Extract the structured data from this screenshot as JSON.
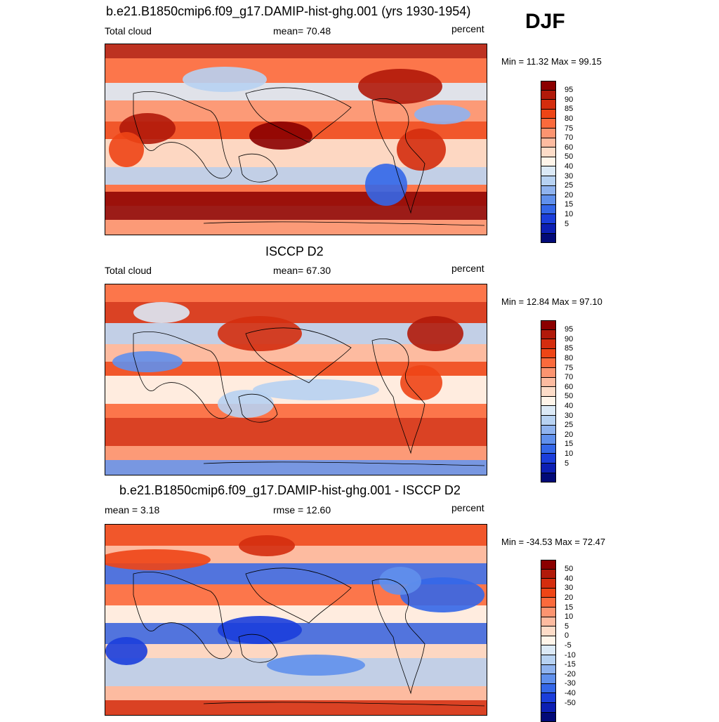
{
  "season": "DJF",
  "panels": [
    {
      "title": "b.e21.B1850cmip6.f09_g17.DAMIP-hist-ghg.001 (yrs 1930-1954)",
      "left_label": "Total cloud",
      "center_label": "mean=  70.48",
      "right_label": "percent",
      "minmax": "Min =  11.32 Max =  99.15",
      "colorbar_labels": [
        "95",
        "90",
        "85",
        "80",
        "75",
        "70",
        "60",
        "50",
        "40",
        "30",
        "25",
        "20",
        "15",
        "10",
        "5"
      ],
      "colors": [
        "#8b0000",
        "#b11a0a",
        "#d42d0e",
        "#ee4516",
        "#fb6a3c",
        "#fc9470",
        "#fdbba0",
        "#fddcc8",
        "#fff5ea",
        "#dbe9f6",
        "#b7d2f2",
        "#8fb3ef",
        "#6090ec",
        "#3467e8",
        "#1b3edb",
        "#0c1fb3",
        "#020a78"
      ]
    },
    {
      "title": "ISCCP D2",
      "left_label": "Total cloud",
      "center_label": "mean=  67.30",
      "right_label": "percent",
      "minmax": "Min =  12.84 Max =  97.10",
      "colorbar_labels": [
        "95",
        "90",
        "85",
        "80",
        "75",
        "70",
        "60",
        "50",
        "40",
        "30",
        "25",
        "20",
        "15",
        "10",
        "5"
      ],
      "colors": [
        "#8b0000",
        "#b11a0a",
        "#d42d0e",
        "#ee4516",
        "#fb6a3c",
        "#fc9470",
        "#fdbba0",
        "#fddcc8",
        "#fff5ea",
        "#dbe9f6",
        "#b7d2f2",
        "#8fb3ef",
        "#6090ec",
        "#3467e8",
        "#1b3edb",
        "#0c1fb3",
        "#020a78"
      ]
    },
    {
      "title": "b.e21.B1850cmip6.f09_g17.DAMIP-hist-ghg.001 - ISCCP D2",
      "left_label": "mean =   3.18",
      "center_label": "rmse =  12.60",
      "right_label": "percent",
      "minmax": "Min = -34.53 Max =  72.47",
      "colorbar_labels": [
        "50",
        "40",
        "30",
        "20",
        "15",
        "10",
        "5",
        "0",
        "-5",
        "-10",
        "-15",
        "-20",
        "-30",
        "-40",
        "-50"
      ],
      "colors": [
        "#8b0000",
        "#b11a0a",
        "#d42d0e",
        "#ee4516",
        "#fb6a3c",
        "#fc9470",
        "#fdbba0",
        "#fddcc8",
        "#fff5ea",
        "#dbe9f6",
        "#b7d2f2",
        "#8fb3ef",
        "#6090ec",
        "#3467e8",
        "#1b3edb",
        "#0c1fb3",
        "#020a78"
      ]
    }
  ]
}
